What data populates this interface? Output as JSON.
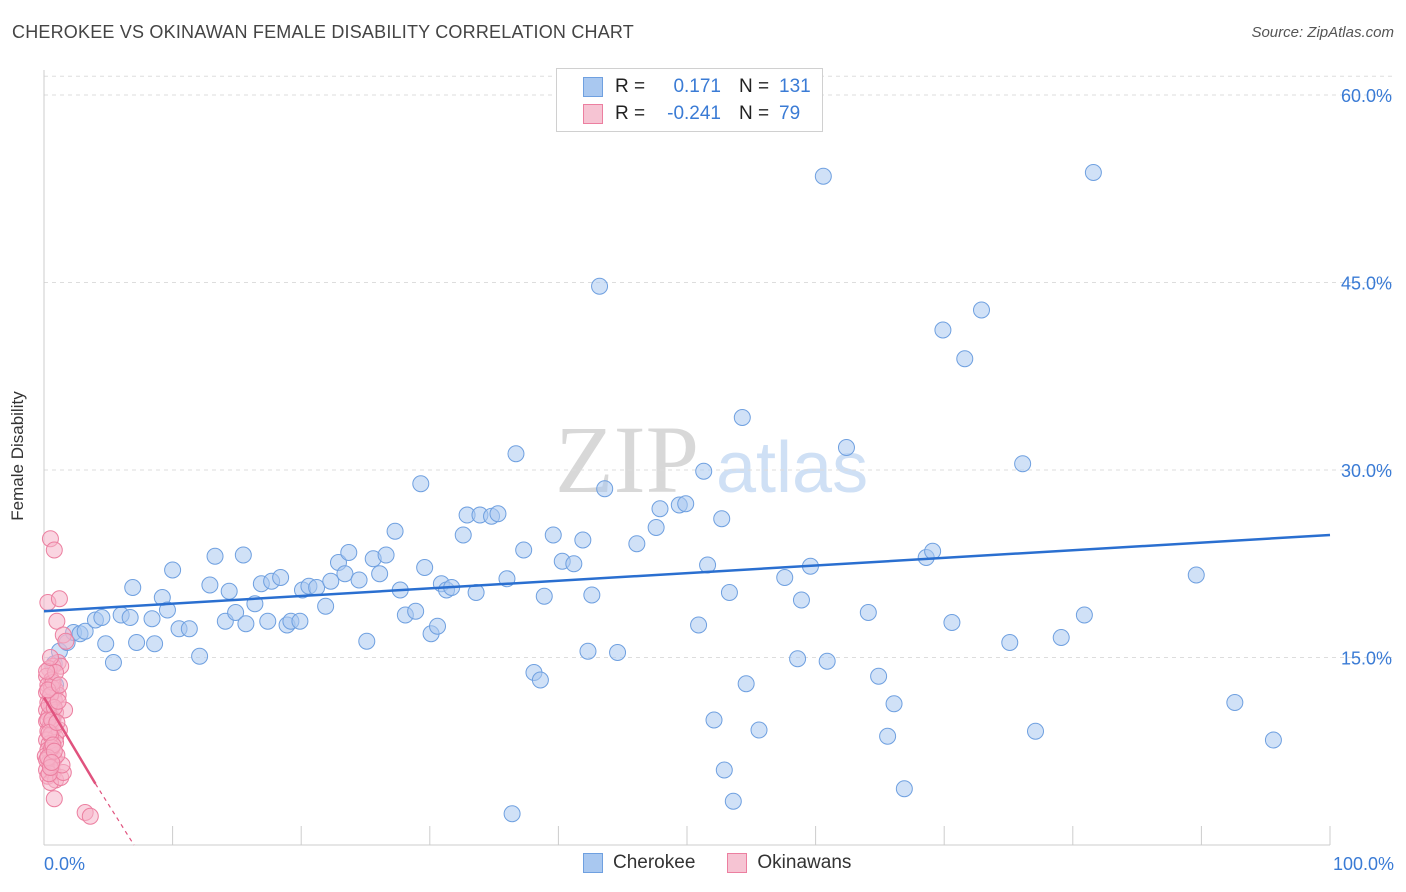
{
  "title": "CHEROKEE VS OKINAWAN FEMALE DISABILITY CORRELATION CHART",
  "source": "Source: ZipAtlas.com",
  "watermark": {
    "zip": "ZIP",
    "atlas": "atlas"
  },
  "legend": {
    "rows": [
      {
        "r_label": "R =",
        "r_value": "0.171",
        "n_label": "N =",
        "n_value": "131"
      },
      {
        "r_label": "R =",
        "r_value": "-0.241",
        "n_label": "N =",
        "n_value": "79"
      }
    ]
  },
  "colors": {
    "cherokee_fill": "#a9c8f0",
    "cherokee_stroke": "#6fa0e0",
    "cherokee_line": "#2a6fd0",
    "okinawan_fill": "#f6b3c8",
    "okinawan_stroke": "#ec7fa0",
    "okinawan_line": "#e0527e",
    "axis_text": "#3a7bd5",
    "grid": "#dddddd"
  },
  "chart_data": {
    "type": "scatter",
    "title": "CHEROKEE VS OKINAWAN FEMALE DISABILITY CORRELATION CHART",
    "xlabel": "",
    "ylabel": "Female Disability",
    "xlim": [
      0,
      100
    ],
    "ylim": [
      0,
      62
    ],
    "x_tick_labels": [
      "0.0%",
      "100.0%"
    ],
    "y_ticks": [
      15,
      30,
      45,
      60
    ],
    "y_tick_labels": [
      "15.0%",
      "30.0%",
      "45.0%",
      "60.0%"
    ],
    "grid": true,
    "legend_position": "top-center",
    "series": [
      {
        "name": "Cherokee",
        "r": 0.171,
        "n": 131,
        "trend": {
          "x": [
            0,
            100
          ],
          "y": [
            18.7,
            24.8
          ]
        },
        "points": [
          [
            0.8,
            14.5
          ],
          [
            0.9,
            12.8
          ],
          [
            1.2,
            15.5
          ],
          [
            1.8,
            16.2
          ],
          [
            2.3,
            17.0
          ],
          [
            2.8,
            16.9
          ],
          [
            3.2,
            17.1
          ],
          [
            4.0,
            18.0
          ],
          [
            4.5,
            18.2
          ],
          [
            4.8,
            16.1
          ],
          [
            5.4,
            14.6
          ],
          [
            6.0,
            18.4
          ],
          [
            6.7,
            18.2
          ],
          [
            6.9,
            20.6
          ],
          [
            7.2,
            16.2
          ],
          [
            8.4,
            18.1
          ],
          [
            8.6,
            16.1
          ],
          [
            9.2,
            19.8
          ],
          [
            9.6,
            18.8
          ],
          [
            10.0,
            22.0
          ],
          [
            10.5,
            17.3
          ],
          [
            11.3,
            17.3
          ],
          [
            12.1,
            15.1
          ],
          [
            12.9,
            20.8
          ],
          [
            13.3,
            23.1
          ],
          [
            14.1,
            17.9
          ],
          [
            14.4,
            20.3
          ],
          [
            14.9,
            18.6
          ],
          [
            15.5,
            23.2
          ],
          [
            15.7,
            17.7
          ],
          [
            16.4,
            19.3
          ],
          [
            16.9,
            20.9
          ],
          [
            17.4,
            17.9
          ],
          [
            17.7,
            21.1
          ],
          [
            18.4,
            21.4
          ],
          [
            18.9,
            17.6
          ],
          [
            19.2,
            17.9
          ],
          [
            19.9,
            17.9
          ],
          [
            20.1,
            20.4
          ],
          [
            20.6,
            20.7
          ],
          [
            21.2,
            20.6
          ],
          [
            21.9,
            19.1
          ],
          [
            22.3,
            21.1
          ],
          [
            22.9,
            22.6
          ],
          [
            23.4,
            21.7
          ],
          [
            23.7,
            23.4
          ],
          [
            24.5,
            21.2
          ],
          [
            25.1,
            16.3
          ],
          [
            25.6,
            22.9
          ],
          [
            26.1,
            21.7
          ],
          [
            26.6,
            23.2
          ],
          [
            27.3,
            25.1
          ],
          [
            27.7,
            20.4
          ],
          [
            28.1,
            18.4
          ],
          [
            28.9,
            18.7
          ],
          [
            29.3,
            28.9
          ],
          [
            29.6,
            22.2
          ],
          [
            30.1,
            16.9
          ],
          [
            30.6,
            17.5
          ],
          [
            30.9,
            20.9
          ],
          [
            31.3,
            20.4
          ],
          [
            31.7,
            20.6
          ],
          [
            32.6,
            24.8
          ],
          [
            32.9,
            26.4
          ],
          [
            33.6,
            20.2
          ],
          [
            33.9,
            26.4
          ],
          [
            34.8,
            26.3
          ],
          [
            35.3,
            26.5
          ],
          [
            36.0,
            21.3
          ],
          [
            36.4,
            2.5
          ],
          [
            36.7,
            31.3
          ],
          [
            37.3,
            23.6
          ],
          [
            38.1,
            13.8
          ],
          [
            38.6,
            13.2
          ],
          [
            38.9,
            19.9
          ],
          [
            39.6,
            24.8
          ],
          [
            40.3,
            22.7
          ],
          [
            41.2,
            22.5
          ],
          [
            41.9,
            24.4
          ],
          [
            42.3,
            15.5
          ],
          [
            42.6,
            20.0
          ],
          [
            43.2,
            44.7
          ],
          [
            43.6,
            28.5
          ],
          [
            44.6,
            15.4
          ],
          [
            46.1,
            24.1
          ],
          [
            47.6,
            25.4
          ],
          [
            47.9,
            26.9
          ],
          [
            49.4,
            27.2
          ],
          [
            49.9,
            27.3
          ],
          [
            50.9,
            17.6
          ],
          [
            51.3,
            29.9
          ],
          [
            51.6,
            22.4
          ],
          [
            52.1,
            10.0
          ],
          [
            52.7,
            26.1
          ],
          [
            52.9,
            6.0
          ],
          [
            53.3,
            20.2
          ],
          [
            53.6,
            3.5
          ],
          [
            54.3,
            34.2
          ],
          [
            54.6,
            12.9
          ],
          [
            55.6,
            9.2
          ],
          [
            57.6,
            21.4
          ],
          [
            58.6,
            14.9
          ],
          [
            58.9,
            19.6
          ],
          [
            59.6,
            22.3
          ],
          [
            60.6,
            53.5
          ],
          [
            60.9,
            14.7
          ],
          [
            62.4,
            31.8
          ],
          [
            64.1,
            18.6
          ],
          [
            64.9,
            13.5
          ],
          [
            65.6,
            8.7
          ],
          [
            66.1,
            11.3
          ],
          [
            66.9,
            4.5
          ],
          [
            68.6,
            23.0
          ],
          [
            69.1,
            23.5
          ],
          [
            69.9,
            41.2
          ],
          [
            70.6,
            17.8
          ],
          [
            71.6,
            38.9
          ],
          [
            72.9,
            42.8
          ],
          [
            75.1,
            16.2
          ],
          [
            76.1,
            30.5
          ],
          [
            77.1,
            9.1
          ],
          [
            79.1,
            16.6
          ],
          [
            80.9,
            18.4
          ],
          [
            81.6,
            53.8
          ],
          [
            89.6,
            21.6
          ],
          [
            92.6,
            11.4
          ],
          [
            95.6,
            8.4
          ]
        ]
      },
      {
        "name": "Okinawans",
        "r": -0.241,
        "n": 79,
        "trend": {
          "x": [
            0,
            4.0
          ],
          "y": [
            11.8,
            4.9
          ],
          "extended": {
            "x": [
              4.0,
              7.0
            ],
            "y": [
              4.9,
              0
            ]
          }
        },
        "points": [
          [
            0.3,
            19.4
          ],
          [
            0.5,
            24.5
          ],
          [
            0.8,
            23.6
          ],
          [
            1.0,
            17.9
          ],
          [
            1.2,
            19.7
          ],
          [
            1.5,
            16.8
          ],
          [
            1.7,
            16.3
          ],
          [
            1.1,
            14.6
          ],
          [
            0.7,
            14.3
          ],
          [
            0.4,
            14.1
          ],
          [
            0.2,
            13.5
          ],
          [
            0.6,
            13.2
          ],
          [
            0.3,
            12.8
          ],
          [
            0.9,
            12.4
          ],
          [
            0.2,
            12.2
          ],
          [
            0.5,
            11.9
          ],
          [
            0.8,
            11.6
          ],
          [
            0.3,
            11.4
          ],
          [
            0.6,
            11.1
          ],
          [
            0.2,
            10.8
          ],
          [
            0.9,
            10.6
          ],
          [
            0.4,
            10.4
          ],
          [
            0.7,
            10.1
          ],
          [
            0.2,
            9.9
          ],
          [
            0.5,
            9.6
          ],
          [
            0.8,
            9.4
          ],
          [
            0.3,
            9.1
          ],
          [
            0.6,
            8.9
          ],
          [
            0.9,
            8.6
          ],
          [
            0.2,
            8.4
          ],
          [
            0.4,
            8.1
          ],
          [
            0.7,
            7.9
          ],
          [
            0.3,
            7.6
          ],
          [
            0.5,
            7.4
          ],
          [
            0.1,
            7.1
          ],
          [
            0.8,
            6.9
          ],
          [
            0.4,
            6.6
          ],
          [
            0.6,
            6.3
          ],
          [
            0.2,
            6.0
          ],
          [
            0.7,
            5.8
          ],
          [
            0.3,
            5.5
          ],
          [
            0.9,
            5.2
          ],
          [
            0.5,
            5.0
          ],
          [
            1.3,
            5.4
          ],
          [
            1.5,
            5.8
          ],
          [
            1.4,
            6.4
          ],
          [
            0.8,
            3.7
          ],
          [
            3.2,
            2.6
          ],
          [
            3.6,
            2.3
          ],
          [
            1.3,
            14.3
          ],
          [
            1.1,
            12.0
          ],
          [
            1.6,
            10.8
          ],
          [
            1.2,
            9.2
          ],
          [
            0.9,
            8.2
          ],
          [
            1.0,
            7.2
          ],
          [
            0.6,
            12.6
          ],
          [
            0.4,
            11.2
          ],
          [
            0.3,
            10.0
          ],
          [
            0.5,
            8.8
          ],
          [
            0.6,
            7.8
          ],
          [
            0.2,
            6.8
          ],
          [
            0.4,
            5.7
          ],
          [
            0.7,
            13.0
          ],
          [
            0.5,
            12.0
          ],
          [
            0.8,
            11.0
          ],
          [
            0.6,
            10.0
          ],
          [
            0.4,
            9.0
          ],
          [
            0.7,
            8.0
          ],
          [
            0.3,
            7.0
          ],
          [
            0.5,
            6.2
          ],
          [
            0.9,
            13.8
          ],
          [
            0.2,
            13.9
          ],
          [
            1.1,
            11.5
          ],
          [
            1.0,
            9.8
          ],
          [
            0.8,
            7.5
          ],
          [
            0.6,
            6.6
          ],
          [
            0.3,
            12.4
          ],
          [
            1.2,
            12.8
          ],
          [
            0.5,
            15.0
          ]
        ]
      }
    ]
  },
  "bottom_legend": [
    {
      "label": "Cherokee"
    },
    {
      "label": "Okinawans"
    }
  ]
}
